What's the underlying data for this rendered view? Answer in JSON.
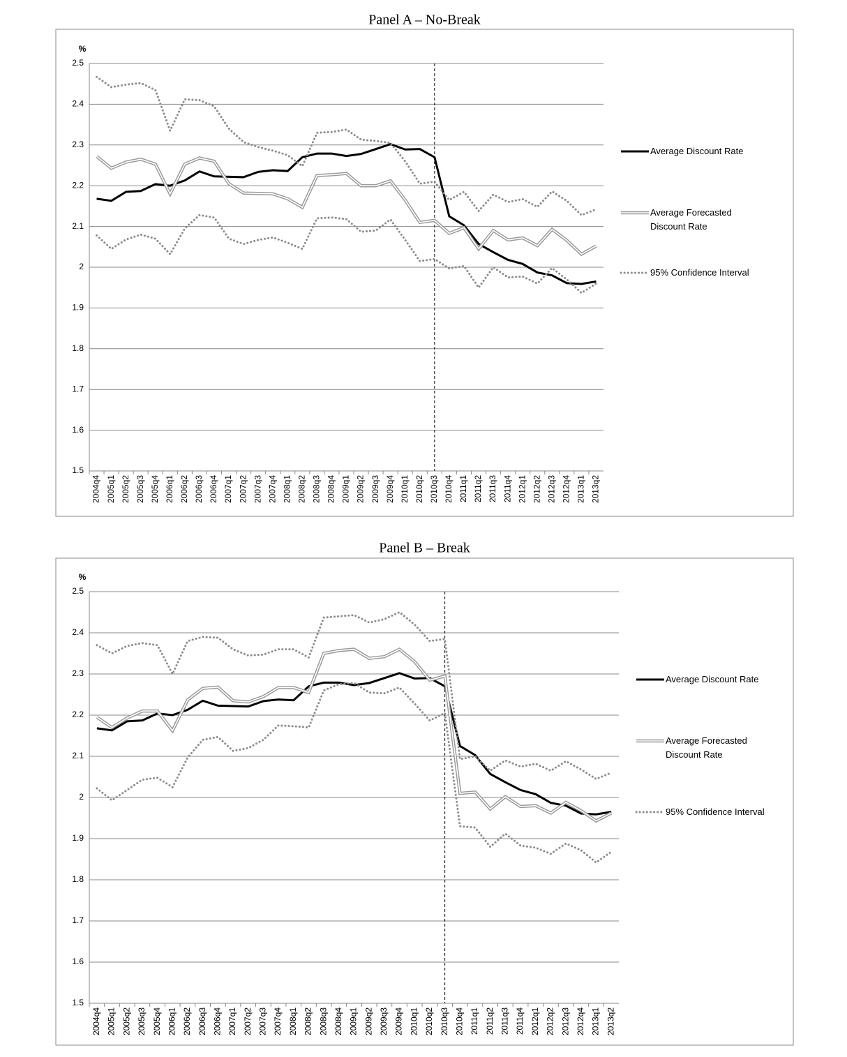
{
  "chart_data": [
    {
      "type": "line",
      "title": "Panel A – No-Break",
      "y_label": "%",
      "categories": [
        "2004q4",
        "2005q1",
        "2005q2",
        "2005q3",
        "2005q4",
        "2006q1",
        "2006q2",
        "2006q3",
        "2006q4",
        "2007q1",
        "2007q2",
        "2007q3",
        "2007q4",
        "2008q1",
        "2008q2",
        "2008q3",
        "2008q4",
        "2009q1",
        "2009q2",
        "2009q3",
        "2009q4",
        "2010q1",
        "2010q2",
        "2010q3",
        "2010q4",
        "2011q1",
        "2011q2",
        "2011q3",
        "2011q4",
        "2012q1",
        "2012q2",
        "2012q3",
        "2012q4",
        "2013q1",
        "2013q2"
      ],
      "vline": "2010q3",
      "ylim": [
        1.5,
        2.5
      ],
      "yticks": [
        1.5,
        1.6,
        1.7,
        1.8,
        1.9,
        2,
        2.1,
        2.2,
        2.3,
        2.4,
        2.5
      ],
      "grid": true,
      "series": [
        {
          "name": "Average Discount Rate",
          "color": "#000000",
          "style": "solid",
          "values": [
            2.168,
            2.163,
            2.185,
            2.187,
            2.204,
            2.2,
            2.213,
            2.235,
            2.223,
            2.222,
            2.221,
            2.234,
            2.238,
            2.236,
            2.27,
            2.279,
            2.279,
            2.273,
            2.278,
            2.29,
            2.302,
            2.289,
            2.29,
            2.27,
            2.125,
            2.103,
            2.057,
            2.037,
            2.018,
            2.008,
            1.987,
            1.98,
            1.961,
            1.959,
            1.965
          ]
        },
        {
          "name": "Average Forecasted Discount Rate",
          "color": "#999999",
          "style": "double",
          "values": [
            2.272,
            2.243,
            2.258,
            2.265,
            2.253,
            2.18,
            2.253,
            2.268,
            2.26,
            2.205,
            2.182,
            2.181,
            2.18,
            2.168,
            2.147,
            2.225,
            2.227,
            2.23,
            2.2,
            2.2,
            2.212,
            2.165,
            2.11,
            2.115,
            2.083,
            2.097,
            2.045,
            2.09,
            2.067,
            2.072,
            2.053,
            2.093,
            2.066,
            2.032,
            2.052
          ]
        },
        {
          "name": "95% Confidence Interval",
          "color": "#8c8c8c",
          "style": "dotted",
          "upper": [
            2.467,
            2.442,
            2.448,
            2.452,
            2.435,
            2.335,
            2.412,
            2.41,
            2.395,
            2.34,
            2.307,
            2.295,
            2.286,
            2.275,
            2.248,
            2.33,
            2.332,
            2.338,
            2.313,
            2.31,
            2.305,
            2.26,
            2.205,
            2.21,
            2.165,
            2.185,
            2.138,
            2.178,
            2.16,
            2.167,
            2.148,
            2.186,
            2.163,
            2.128,
            2.142
          ],
          "lower": [
            2.078,
            2.045,
            2.068,
            2.08,
            2.07,
            2.032,
            2.095,
            2.128,
            2.122,
            2.07,
            2.057,
            2.067,
            2.073,
            2.06,
            2.045,
            2.12,
            2.122,
            2.118,
            2.087,
            2.09,
            2.117,
            2.067,
            2.015,
            2.02,
            1.997,
            2.003,
            1.95,
            2.0,
            1.975,
            1.977,
            1.96,
            1.998,
            1.97,
            1.937,
            1.96
          ]
        }
      ]
    },
    {
      "type": "line",
      "title": "Panel B – Break",
      "y_label": "%",
      "categories": [
        "2004q4",
        "2005q1",
        "2005q2",
        "2005q3",
        "2005q4",
        "2006q1",
        "2006q2",
        "2006q3",
        "2006q4",
        "2007q1",
        "2007q2",
        "2007q3",
        "2007q4",
        "2008q1",
        "2008q2",
        "2008q3",
        "2008q4",
        "2009q1",
        "2009q2",
        "2009q3",
        "2009q4",
        "2010q1",
        "2010q2",
        "2010q3",
        "2010q4",
        "2011q1",
        "2011q2",
        "2011q3",
        "2011q4",
        "2012q1",
        "2012q2",
        "2012q3",
        "2012q4",
        "2013q1",
        "2013q2"
      ],
      "vline": "2010q3",
      "ylim": [
        1.5,
        2.5
      ],
      "yticks": [
        1.5,
        1.6,
        1.7,
        1.8,
        1.9,
        2,
        2.1,
        2.2,
        2.3,
        2.4,
        2.5
      ],
      "grid": true,
      "series": [
        {
          "name": "Average Discount Rate",
          "color": "#000000",
          "style": "solid",
          "values": [
            2.168,
            2.163,
            2.185,
            2.187,
            2.204,
            2.2,
            2.213,
            2.235,
            2.223,
            2.222,
            2.221,
            2.234,
            2.238,
            2.236,
            2.27,
            2.279,
            2.279,
            2.273,
            2.278,
            2.29,
            2.302,
            2.289,
            2.29,
            2.27,
            2.125,
            2.103,
            2.057,
            2.037,
            2.018,
            2.008,
            1.987,
            1.98,
            1.961,
            1.959,
            1.965
          ]
        },
        {
          "name": "Average Forecasted Discount Rate",
          "color": "#999999",
          "style": "double",
          "values": [
            2.195,
            2.17,
            2.193,
            2.21,
            2.21,
            2.162,
            2.237,
            2.265,
            2.268,
            2.235,
            2.232,
            2.245,
            2.267,
            2.267,
            2.255,
            2.35,
            2.357,
            2.36,
            2.338,
            2.342,
            2.36,
            2.33,
            2.285,
            2.295,
            2.01,
            2.013,
            1.972,
            2.002,
            1.978,
            1.98,
            1.962,
            1.988,
            1.968,
            1.943,
            1.962
          ]
        },
        {
          "name": "95% Confidence Interval",
          "color": "#8c8c8c",
          "style": "dotted",
          "upper": [
            2.37,
            2.35,
            2.368,
            2.375,
            2.37,
            2.3,
            2.38,
            2.39,
            2.388,
            2.36,
            2.345,
            2.347,
            2.36,
            2.36,
            2.34,
            2.437,
            2.44,
            2.443,
            2.425,
            2.433,
            2.45,
            2.42,
            2.38,
            2.385,
            2.093,
            2.1,
            2.065,
            2.09,
            2.075,
            2.082,
            2.065,
            2.088,
            2.068,
            2.045,
            2.06
          ],
          "lower": [
            2.022,
            1.993,
            2.018,
            2.043,
            2.048,
            2.025,
            2.097,
            2.14,
            2.147,
            2.113,
            2.12,
            2.14,
            2.175,
            2.173,
            2.17,
            2.26,
            2.275,
            2.278,
            2.255,
            2.253,
            2.267,
            2.228,
            2.187,
            2.205,
            1.93,
            1.927,
            1.88,
            1.912,
            1.883,
            1.878,
            1.863,
            1.888,
            1.872,
            1.842,
            1.868
          ]
        }
      ]
    }
  ]
}
